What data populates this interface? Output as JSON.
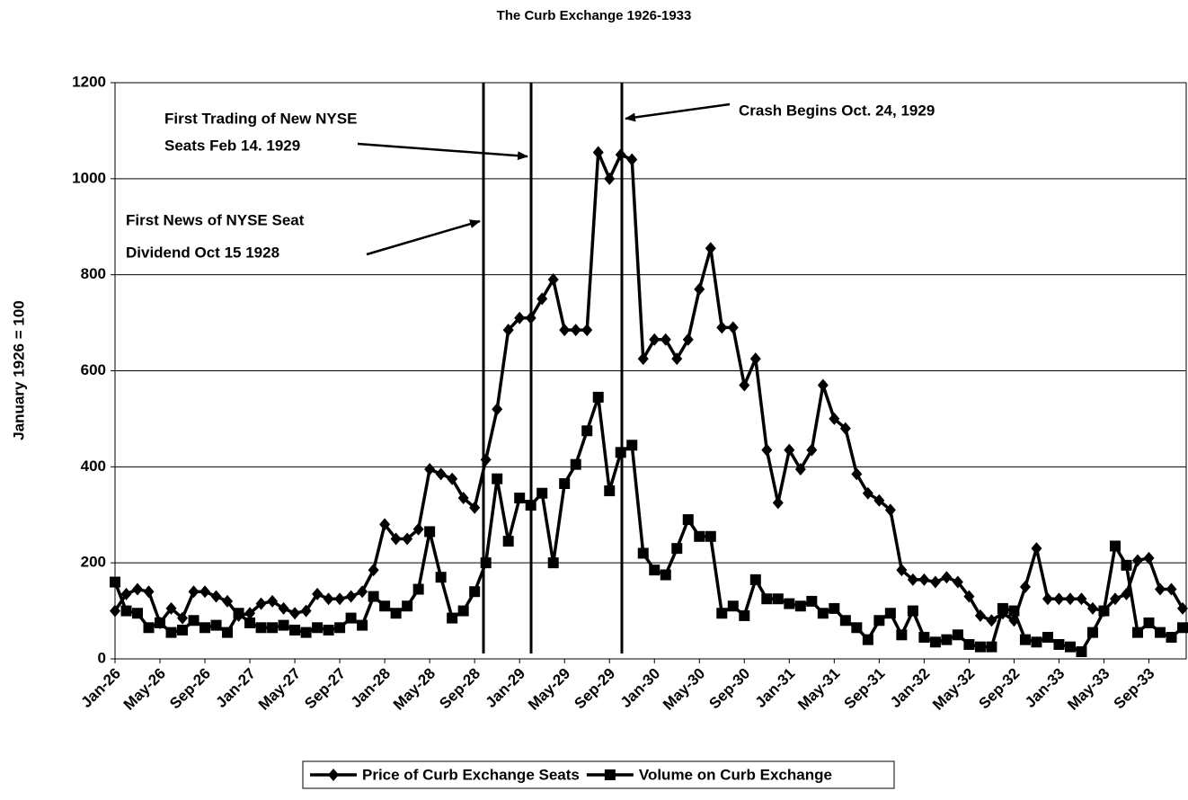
{
  "chart_data": {
    "type": "line",
    "title": "The Curb Exchange 1926-1933",
    "y_label": "January 1926 = 100",
    "categories": [
      "Jan-26",
      null,
      null,
      null,
      "May-26",
      null,
      null,
      null,
      "Sep-26",
      null,
      null,
      null,
      "Jan-27",
      null,
      null,
      null,
      "May-27",
      null,
      null,
      null,
      "Sep-27",
      null,
      null,
      null,
      "Jan-28",
      null,
      null,
      null,
      "May-28",
      null,
      null,
      null,
      "Sep-28",
      null,
      null,
      null,
      "Jan-29",
      null,
      null,
      null,
      "May-29",
      null,
      null,
      null,
      "Sep-29",
      null,
      null,
      null,
      "Jan-30",
      null,
      null,
      null,
      "May-30",
      null,
      null,
      null,
      "Sep-30",
      null,
      null,
      null,
      "Jan-31",
      null,
      null,
      null,
      "May-31",
      null,
      null,
      null,
      "Sep-31",
      null,
      null,
      null,
      "Jan-32",
      null,
      null,
      null,
      "May-32",
      null,
      null,
      null,
      "Sep-32",
      null,
      null,
      null,
      "Jan-33",
      null,
      null,
      null,
      "May-33",
      null,
      null,
      null,
      "Sep-33",
      null,
      null,
      null
    ],
    "series": [
      {
        "name": "Price of Curb Exchange Seats",
        "color": "#000000",
        "marker": "diamond",
        "values": [
          100,
          135,
          145,
          140,
          75,
          105,
          85,
          140,
          140,
          130,
          120,
          90,
          95,
          115,
          120,
          105,
          95,
          100,
          135,
          125,
          125,
          130,
          140,
          185,
          280,
          250,
          250,
          270,
          395,
          385,
          375,
          335,
          315,
          415,
          520,
          685,
          710,
          710,
          750,
          790,
          685,
          685,
          685,
          1055,
          1000,
          1050,
          1040,
          625,
          665,
          665,
          625,
          665,
          770,
          855,
          690,
          690,
          570,
          625,
          435,
          325,
          435,
          395,
          435,
          570,
          500,
          480,
          385,
          345,
          330,
          310,
          185,
          165,
          165,
          160,
          170,
          160,
          130,
          90,
          80,
          95,
          80,
          150,
          230,
          125,
          125,
          125,
          125,
          105,
          100,
          125,
          135,
          205,
          210,
          145,
          145,
          105
        ]
      },
      {
        "name": "Volume on Curb Exchange",
        "color": "#000000",
        "marker": "square",
        "values": [
          160,
          100,
          95,
          65,
          75,
          55,
          60,
          80,
          65,
          70,
          55,
          95,
          75,
          65,
          65,
          70,
          60,
          55,
          65,
          60,
          65,
          85,
          70,
          130,
          110,
          95,
          110,
          145,
          265,
          170,
          85,
          100,
          140,
          200,
          375,
          245,
          335,
          320,
          345,
          200,
          365,
          405,
          475,
          545,
          350,
          430,
          445,
          220,
          185,
          175,
          230,
          290,
          255,
          255,
          95,
          110,
          90,
          165,
          125,
          125,
          115,
          110,
          120,
          95,
          105,
          80,
          65,
          40,
          80,
          95,
          50,
          100,
          45,
          35,
          40,
          50,
          30,
          25,
          25,
          105,
          100,
          40,
          35,
          45,
          30,
          25,
          15,
          55,
          100,
          235,
          195,
          55,
          75,
          55,
          45,
          65
        ]
      }
    ],
    "ylim": [
      0,
      1200
    ],
    "yticks": [
      0,
      200,
      400,
      600,
      800,
      1000,
      1200
    ],
    "grid": true,
    "legend": "bottom",
    "annotations": [
      [
        "First News of NYSE Seat",
        "Dividend Oct 15 1928"
      ],
      [
        "First Trading of New NYSE",
        "Seats  Feb 14. 1929"
      ],
      [
        "Crash Begins Oct. 24, 1929"
      ]
    ]
  }
}
